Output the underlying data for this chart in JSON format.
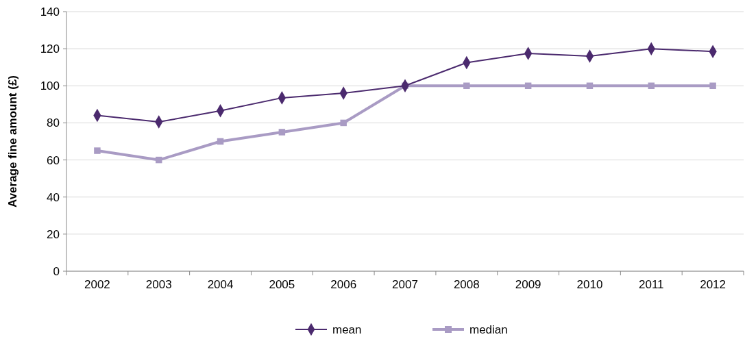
{
  "chart_data": {
    "type": "line",
    "ylabel": "Average fine amount (£)",
    "categories": [
      "2002",
      "2003",
      "2004",
      "2005",
      "2006",
      "2007",
      "2008",
      "2009",
      "2010",
      "2011",
      "2012"
    ],
    "series": [
      {
        "name": "mean",
        "color": "#4b2a6e",
        "marker": "diamond",
        "values": [
          84,
          80.5,
          86.5,
          93.5,
          96,
          100,
          112.5,
          117.5,
          116,
          120,
          118.5
        ]
      },
      {
        "name": "median",
        "color": "#a99bc4",
        "marker": "square",
        "values": [
          65,
          60,
          70,
          75,
          80,
          100,
          100,
          100,
          100,
          100,
          100
        ]
      }
    ],
    "ylim": [
      0,
      140
    ],
    "yticks": [
      0,
      20,
      40,
      60,
      80,
      100,
      120,
      140
    ],
    "grid": "y",
    "legend": "bottom"
  }
}
